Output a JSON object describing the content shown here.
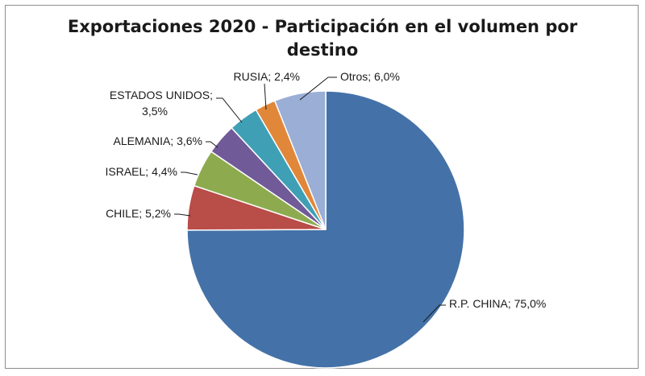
{
  "chart_data": {
    "type": "pie",
    "title": "Exportaciones 2020 - Participación en el volumen por destino",
    "title_lines": [
      "Exportaciones 2020 - Participación en el volumen por",
      "destino"
    ],
    "slices": [
      {
        "name": "R.P. CHINA",
        "value": 75.0,
        "label_lines": [
          "R.P. CHINA; 75,0%"
        ],
        "color": "#4472a8"
      },
      {
        "name": "CHILE",
        "value": 5.2,
        "label_lines": [
          "CHILE; 5,2%"
        ],
        "color": "#b94d48"
      },
      {
        "name": "ISRAEL",
        "value": 4.4,
        "label_lines": [
          "ISRAEL; 4,4%"
        ],
        "color": "#8dab4e"
      },
      {
        "name": "ALEMANIA",
        "value": 3.6,
        "label_lines": [
          "ALEMANIA; 3,6%"
        ],
        "color": "#715a98"
      },
      {
        "name": "ESTADOS UNIDOS",
        "value": 3.5,
        "label_lines": [
          "ESTADOS UNIDOS;",
          "3,5%"
        ],
        "color": "#3fa0b5"
      },
      {
        "name": "RUSIA",
        "value": 2.4,
        "label_lines": [
          "RUSIA; 2,4%"
        ],
        "color": "#e0873a"
      },
      {
        "name": "Otros",
        "value": 6.0,
        "label_lines": [
          "Otros; 6,0%"
        ],
        "color": "#9aaed6"
      }
    ]
  }
}
